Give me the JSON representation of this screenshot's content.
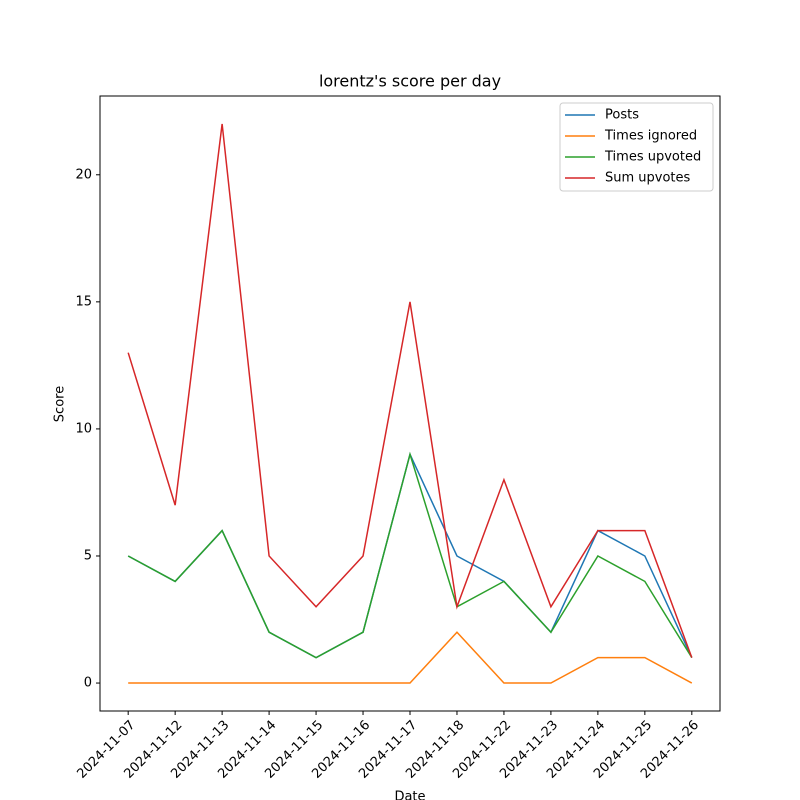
{
  "chart_data": {
    "type": "line",
    "title": "lorentz's score per day",
    "x_label": "Date",
    "y_label": "Score",
    "categories": [
      "2024-11-07",
      "2024-11-12",
      "2024-11-13",
      "2024-11-14",
      "2024-11-15",
      "2024-11-16",
      "2024-11-17",
      "2024-11-18",
      "2024-11-22",
      "2024-11-23",
      "2024-11-24",
      "2024-11-25",
      "2024-11-26"
    ],
    "series": [
      {
        "name": "Posts",
        "color": "#1f77b4",
        "values": [
          5,
          4,
          6,
          2,
          1,
          2,
          9,
          5,
          4,
          2,
          6,
          5,
          1
        ]
      },
      {
        "name": "Times ignored",
        "color": "#ff7f0e",
        "values": [
          0,
          0,
          0,
          0,
          0,
          0,
          0,
          2,
          0,
          0,
          1,
          1,
          0
        ]
      },
      {
        "name": "Times upvoted",
        "color": "#2ca02c",
        "values": [
          5,
          4,
          6,
          2,
          1,
          2,
          9,
          3,
          4,
          2,
          5,
          4,
          1
        ]
      },
      {
        "name": "Sum upvotes",
        "color": "#d62728",
        "values": [
          13,
          7,
          22,
          5,
          3,
          5,
          15,
          3,
          8,
          3,
          6,
          6,
          1
        ]
      }
    ],
    "ylim": [
      -1.1,
      23.1
    ],
    "yticks": [
      0,
      5,
      10,
      15,
      20
    ],
    "grid": false,
    "legend": "upper right"
  }
}
